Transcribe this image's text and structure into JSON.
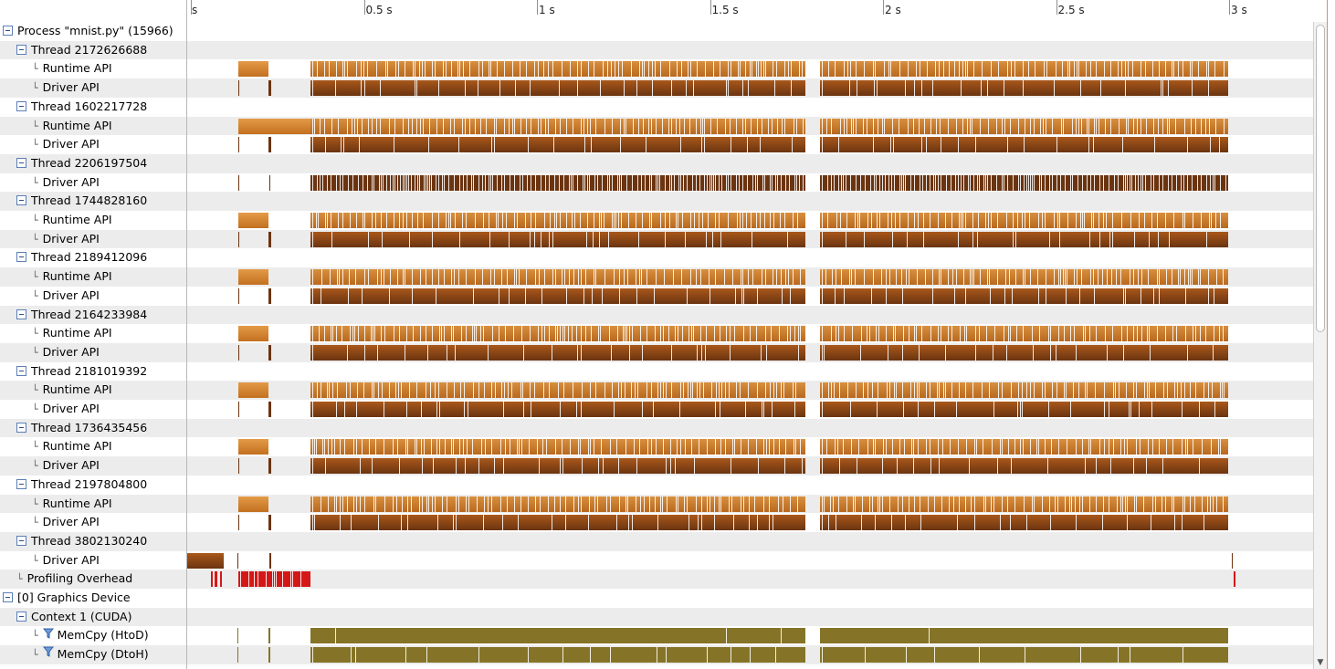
{
  "ruler": {
    "ticks": [
      {
        "label": "s",
        "t": 0
      },
      {
        "label": "0.5 s",
        "t": 0.5
      },
      {
        "label": "1 s",
        "t": 1.0
      },
      {
        "label": "1.5 s",
        "t": 1.5
      },
      {
        "label": "2 s",
        "t": 2.0
      },
      {
        "label": "2.5 s",
        "t": 2.5
      },
      {
        "label": "3 s",
        "t": 3.0
      }
    ]
  },
  "rows": [
    {
      "label": "Process \"mnist.py\" (15966)",
      "level": 0,
      "kind": "group",
      "lane": "empty"
    },
    {
      "label": "Thread 2172626688",
      "level": 1,
      "kind": "group",
      "lane": "empty"
    },
    {
      "label": "Runtime API",
      "level": 2,
      "kind": "leaf",
      "lane": "runtime"
    },
    {
      "label": "Driver API",
      "level": 2,
      "kind": "leaf",
      "lane": "driver"
    },
    {
      "label": "Thread 1602217728",
      "level": 1,
      "kind": "group",
      "lane": "empty"
    },
    {
      "label": "Runtime API",
      "level": 2,
      "kind": "leaf",
      "lane": "runtime-long"
    },
    {
      "label": "Driver API",
      "level": 2,
      "kind": "leaf",
      "lane": "driver"
    },
    {
      "label": "Thread 2206197504",
      "level": 1,
      "kind": "group",
      "lane": "empty"
    },
    {
      "label": "Driver API",
      "level": 2,
      "kind": "leaf",
      "lane": "driver-sparse"
    },
    {
      "label": "Thread 1744828160",
      "level": 1,
      "kind": "group",
      "lane": "empty"
    },
    {
      "label": "Runtime API",
      "level": 2,
      "kind": "leaf",
      "lane": "runtime"
    },
    {
      "label": "Driver API",
      "level": 2,
      "kind": "leaf",
      "lane": "driver"
    },
    {
      "label": "Thread 2189412096",
      "level": 1,
      "kind": "group",
      "lane": "empty"
    },
    {
      "label": "Runtime API",
      "level": 2,
      "kind": "leaf",
      "lane": "runtime"
    },
    {
      "label": "Driver API",
      "level": 2,
      "kind": "leaf",
      "lane": "driver"
    },
    {
      "label": "Thread 2164233984",
      "level": 1,
      "kind": "group",
      "lane": "empty"
    },
    {
      "label": "Runtime API",
      "level": 2,
      "kind": "leaf",
      "lane": "runtime"
    },
    {
      "label": "Driver API",
      "level": 2,
      "kind": "leaf",
      "lane": "driver"
    },
    {
      "label": "Thread 2181019392",
      "level": 1,
      "kind": "group",
      "lane": "empty"
    },
    {
      "label": "Runtime API",
      "level": 2,
      "kind": "leaf",
      "lane": "runtime"
    },
    {
      "label": "Driver API",
      "level": 2,
      "kind": "leaf",
      "lane": "driver"
    },
    {
      "label": "Thread 1736435456",
      "level": 1,
      "kind": "group",
      "lane": "empty"
    },
    {
      "label": "Runtime API",
      "level": 2,
      "kind": "leaf",
      "lane": "runtime"
    },
    {
      "label": "Driver API",
      "level": 2,
      "kind": "leaf",
      "lane": "driver"
    },
    {
      "label": "Thread 2197804800",
      "level": 1,
      "kind": "group",
      "lane": "empty"
    },
    {
      "label": "Runtime API",
      "level": 2,
      "kind": "leaf",
      "lane": "runtime"
    },
    {
      "label": "Driver API",
      "level": 2,
      "kind": "leaf",
      "lane": "driver"
    },
    {
      "label": "Thread 3802130240",
      "level": 1,
      "kind": "group",
      "lane": "empty"
    },
    {
      "label": "Driver API",
      "level": 2,
      "kind": "leaf",
      "lane": "driver-init"
    },
    {
      "label": "Profiling Overhead",
      "level": 1,
      "kind": "leaf",
      "lane": "overhead"
    },
    {
      "label": "[0] Graphics Device",
      "level": 0,
      "kind": "group",
      "lane": "empty"
    },
    {
      "label": "Context 1 (CUDA)",
      "level": 1,
      "kind": "group",
      "lane": "empty"
    },
    {
      "label": "MemCpy (HtoD)",
      "level": 2,
      "kind": "filter",
      "lane": "memcpy-htod"
    },
    {
      "label": "MemCpy (DtoH)",
      "level": 2,
      "kind": "filter",
      "lane": "memcpy-dtoh"
    }
  ],
  "colors": {
    "runtime": "#c97a2c",
    "driver": "#6b3410",
    "overhead": "#d41818",
    "memcpy": "#857427",
    "rowAlt": "#ececec"
  },
  "icons": {
    "expanded": "collapse-toggle-icon",
    "branch": "tree-branch-icon",
    "filter": "filter-icon"
  }
}
